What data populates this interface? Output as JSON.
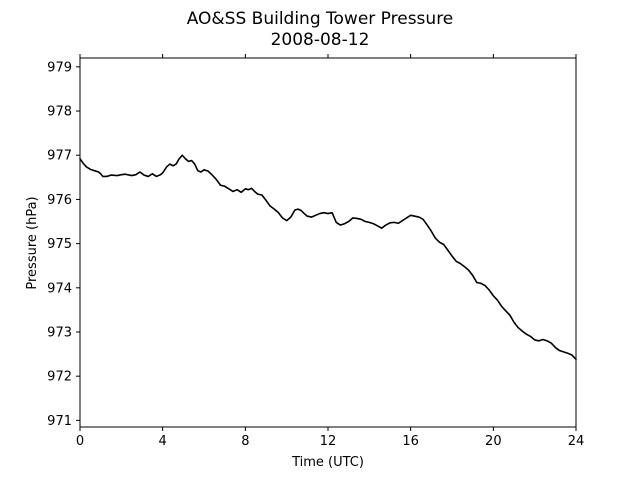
{
  "title": "AO&SS Building Tower Pressure",
  "subtitle": "2008-08-12",
  "chart_data": {
    "type": "line",
    "title": "AO&SS Building Tower Pressure",
    "subtitle": "2008-08-12",
    "xlabel": "Time (UTC)",
    "ylabel": "Pressure (hPa)",
    "xlim": [
      0,
      24
    ],
    "ylim": [
      970.85,
      979.2
    ],
    "xticks": [
      0,
      4,
      8,
      12,
      16,
      20,
      24
    ],
    "yticks": [
      971,
      972,
      973,
      974,
      975,
      976,
      977,
      978,
      979
    ],
    "grid": false,
    "line_color": "#000000",
    "series": [
      {
        "x": [
          0,
          0.15,
          0.3,
          0.5,
          0.7,
          0.9,
          1.0,
          1.1,
          1.3,
          1.5,
          1.8,
          2.0,
          2.2,
          2.5,
          2.7,
          2.9,
          3.1,
          3.3,
          3.5,
          3.7,
          3.9,
          4.0,
          4.2,
          4.35,
          4.5,
          4.65,
          4.8,
          4.95,
          5.1,
          5.25,
          5.4,
          5.55,
          5.7,
          5.85,
          6.0,
          6.2,
          6.4,
          6.6,
          6.8,
          7.0,
          7.2,
          7.4,
          7.6,
          7.8,
          8.0,
          8.15,
          8.3,
          8.45,
          8.6,
          8.8,
          9.0,
          9.2,
          9.4,
          9.6,
          9.8,
          10.0,
          10.2,
          10.4,
          10.55,
          10.7,
          10.85,
          11.0,
          11.2,
          11.4,
          11.6,
          11.8,
          12.0,
          12.2,
          12.4,
          12.6,
          12.8,
          13.0,
          13.2,
          13.4,
          13.6,
          13.8,
          14.0,
          14.2,
          14.4,
          14.6,
          14.8,
          15.0,
          15.2,
          15.4,
          15.6,
          15.8,
          16.0,
          16.2,
          16.4,
          16.6,
          16.8,
          17.0,
          17.2,
          17.4,
          17.6,
          17.8,
          18.0,
          18.2,
          18.4,
          18.6,
          18.8,
          19.0,
          19.2,
          19.4,
          19.6,
          19.8,
          20.0,
          20.2,
          20.4,
          20.6,
          20.8,
          21.0,
          21.2,
          21.4,
          21.6,
          21.8,
          22.0,
          22.2,
          22.4,
          22.6,
          22.8,
          23.0,
          23.2,
          23.4,
          23.6,
          23.8,
          24.0
        ],
        "y": [
          976.92,
          976.82,
          976.74,
          976.68,
          976.65,
          976.62,
          976.58,
          976.52,
          976.52,
          976.55,
          976.54,
          976.56,
          976.57,
          976.54,
          976.56,
          976.62,
          976.55,
          976.52,
          976.58,
          976.52,
          976.56,
          976.6,
          976.74,
          976.8,
          976.76,
          976.8,
          976.92,
          977.0,
          976.92,
          976.86,
          976.88,
          976.8,
          976.65,
          976.62,
          976.67,
          976.64,
          976.55,
          976.45,
          976.32,
          976.3,
          976.24,
          976.18,
          976.22,
          976.16,
          976.24,
          976.22,
          976.25,
          976.18,
          976.12,
          976.1,
          975.98,
          975.85,
          975.78,
          975.7,
          975.58,
          975.52,
          975.6,
          975.76,
          975.78,
          975.75,
          975.68,
          975.62,
          975.6,
          975.64,
          975.68,
          975.7,
          975.68,
          975.7,
          975.48,
          975.42,
          975.45,
          975.5,
          975.58,
          975.57,
          975.55,
          975.5,
          975.48,
          975.45,
          975.4,
          975.35,
          975.42,
          975.47,
          975.48,
          975.46,
          975.52,
          975.58,
          975.64,
          975.62,
          975.6,
          975.55,
          975.42,
          975.28,
          975.12,
          975.03,
          974.98,
          974.85,
          974.72,
          974.6,
          974.55,
          974.48,
          974.4,
          974.28,
          974.12,
          974.1,
          974.05,
          973.95,
          973.82,
          973.72,
          973.58,
          973.48,
          973.38,
          973.22,
          973.1,
          973.02,
          972.95,
          972.9,
          972.82,
          972.8,
          972.83,
          972.8,
          972.75,
          972.65,
          972.58,
          972.55,
          972.52,
          972.48,
          972.38
        ]
      }
    ]
  }
}
